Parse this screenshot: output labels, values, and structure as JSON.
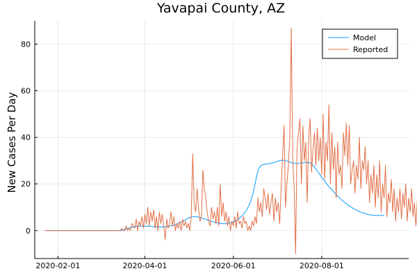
{
  "chart_data": {
    "type": "line",
    "title": "Yavapai County, AZ",
    "xlabel": "",
    "ylabel": "New Cases Per Day",
    "x_start": "2020-01-23",
    "x_range": [
      "2020-01-16",
      "2020-09-30"
    ],
    "ylim": [
      -12,
      90
    ],
    "x_ticks": [
      "2020-02-01",
      "2020-04-01",
      "2020-06-01",
      "2020-08-01"
    ],
    "y_ticks": [
      0,
      20,
      40,
      60,
      80
    ],
    "grid": true,
    "legend_position": "top-right",
    "series": [
      {
        "name": "Model",
        "color": "#009af9",
        "values": [
          0,
          0,
          0,
          0,
          0,
          0,
          0,
          0,
          0,
          0,
          0,
          0,
          0,
          0,
          0,
          0,
          0,
          0,
          0,
          0,
          0,
          0,
          0,
          0,
          0,
          0,
          0,
          0,
          0,
          0,
          0,
          0,
          0,
          0,
          0,
          0,
          0,
          0,
          0,
          0,
          0,
          0,
          0,
          0,
          0,
          0,
          0,
          0,
          0,
          0,
          0,
          0,
          0,
          0.2,
          0.3,
          0.5,
          0.7,
          0.9,
          1.1,
          1.3,
          1.5,
          1.6,
          1.7,
          1.8,
          1.8,
          1.9,
          1.9,
          1.9,
          1.9,
          1.9,
          1.9,
          1.9,
          1.8,
          1.8,
          1.8,
          1.7,
          1.7,
          1.6,
          1.6,
          1.6,
          1.5,
          1.5,
          1.6,
          1.6,
          1.7,
          1.8,
          1.9,
          2,
          2.2,
          2.3,
          2.5,
          2.7,
          3,
          3.3,
          3.6,
          3.9,
          4.3,
          4.6,
          5,
          5.3,
          5.6,
          5.8,
          5.9,
          6,
          6,
          5.9,
          5.8,
          5.6,
          5.4,
          5.2,
          5,
          4.8,
          4.6,
          4.4,
          4.2,
          4,
          3.8,
          3.6,
          3.5,
          3.3,
          3.2,
          3.1,
          3,
          3,
          3,
          3,
          3.1,
          3.2,
          3.3,
          3.5,
          3.7,
          4,
          4.3,
          4.7,
          5.2,
          5.7,
          6.3,
          7,
          7.8,
          8.7,
          9.8,
          11,
          12.5,
          14.5,
          17,
          20,
          23,
          25.5,
          27,
          27.8,
          28.2,
          28.4,
          28.5,
          28.6,
          28.7,
          28.8,
          28.9,
          29,
          29.2,
          29.4,
          29.6,
          29.8,
          30,
          30.1,
          30.2,
          30.1,
          30,
          29.8,
          29.6,
          29.4,
          29.2,
          29,
          28.9,
          28.8,
          28.8,
          28.8,
          28.9,
          29,
          29.1,
          29.2,
          29.3,
          29.3,
          29.2,
          29,
          28.6,
          28,
          27.3,
          26.5,
          25.6,
          24.7,
          23.8,
          22.9,
          22,
          21.2,
          20.4,
          19.6,
          18.9,
          18.2,
          17.5,
          16.8,
          16.1,
          15.4,
          14.8,
          14.2,
          13.6,
          13,
          12.5,
          12,
          11.5,
          11,
          10.6,
          10.2,
          9.8,
          9.4,
          9.1,
          8.8,
          8.5,
          8.2,
          7.9,
          7.7,
          7.5,
          7.3,
          7.1,
          6.9,
          6.8,
          6.7,
          6.6,
          6.5,
          6.5,
          6.5,
          6.5,
          6.5,
          6.5,
          6.6,
          6.6
        ]
      },
      {
        "name": "Reported",
        "color": "#e26f46",
        "values": [
          0,
          0,
          0,
          0,
          0,
          0,
          0,
          0,
          0,
          0,
          0,
          0,
          0,
          0,
          0,
          0,
          0,
          0,
          0,
          0,
          0,
          0,
          0,
          0,
          0,
          0,
          0,
          0,
          0,
          0,
          0,
          0,
          0,
          0,
          0,
          0,
          0,
          0,
          0,
          0,
          0,
          0,
          0,
          0,
          0,
          0,
          0,
          0,
          0,
          0,
          0,
          0,
          0,
          1,
          0,
          0,
          2,
          0,
          1,
          0,
          3,
          2,
          1,
          5,
          0,
          4,
          2,
          6,
          1,
          7,
          3,
          10,
          2,
          8,
          4,
          9,
          1,
          6,
          0,
          8,
          3,
          7,
          2,
          -4,
          5,
          1,
          3,
          8,
          2,
          6,
          0,
          3,
          1,
          4,
          0,
          5,
          2,
          4,
          1,
          3,
          0,
          6,
          33,
          12,
          8,
          18,
          10,
          4,
          6,
          26,
          18,
          14,
          8,
          4,
          2,
          10,
          5,
          8,
          3,
          10,
          2,
          20,
          6,
          12,
          4,
          8,
          2,
          6,
          0,
          4,
          2,
          6,
          1,
          8,
          3,
          4,
          1,
          6,
          3,
          4,
          0,
          2,
          0,
          4,
          2,
          6,
          3,
          14,
          8,
          12,
          6,
          18,
          14,
          9,
          16,
          7,
          12,
          16,
          4,
          14,
          8,
          12,
          3,
          18,
          32,
          45,
          10,
          20,
          28,
          40,
          87,
          30,
          18,
          -10,
          35,
          42,
          48,
          20,
          45,
          30,
          38,
          12,
          40,
          48,
          25,
          35,
          42,
          28,
          44,
          30,
          40,
          24,
          50,
          22,
          38,
          30,
          54,
          20,
          42,
          26,
          36,
          14,
          38,
          24,
          28,
          18,
          42,
          32,
          46,
          28,
          45,
          20,
          26,
          30,
          16,
          28,
          22,
          40,
          18,
          30,
          26,
          36,
          20,
          30,
          12,
          24,
          16,
          28,
          10,
          24,
          14,
          30,
          8,
          20,
          14,
          28,
          6,
          16,
          12,
          22,
          8,
          18,
          4,
          14,
          8,
          18,
          5,
          16,
          10,
          20,
          4,
          14,
          8,
          18,
          6,
          12,
          2,
          14,
          4,
          16,
          2,
          10,
          14,
          8,
          18,
          4,
          12,
          2,
          15,
          6,
          14,
          0
        ]
      }
    ]
  }
}
